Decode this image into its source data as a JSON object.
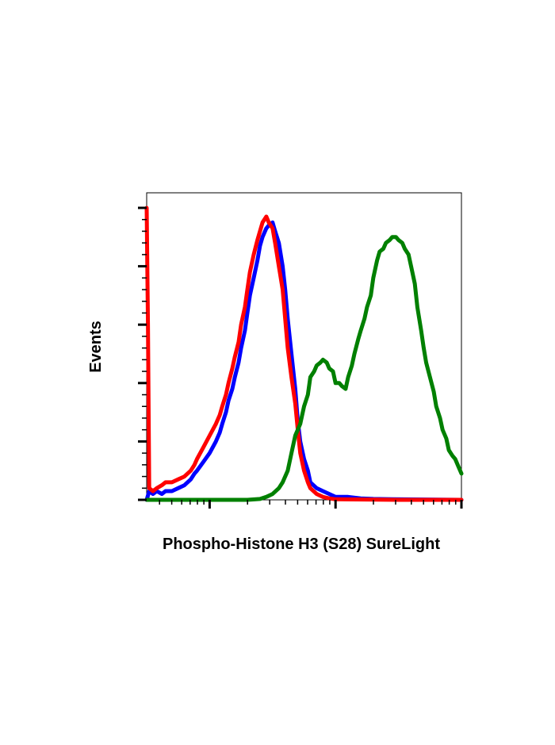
{
  "chart_data": {
    "type": "line",
    "title": "",
    "xlabel": "Phospho-Histone H3 (S28) SureLight",
    "ylabel": "Events",
    "x_scale": "log",
    "xlim": [
      -0.5,
      2.0
    ],
    "ylim": [
      0,
      100
    ],
    "grid": false,
    "legend": "none",
    "tick_labels_shown": false,
    "series": [
      {
        "color": "#0000ff",
        "x": [
          -0.5,
          -0.48,
          -0.45,
          -0.42,
          -0.38,
          -0.35,
          -0.3,
          -0.25,
          -0.2,
          -0.15,
          -0.12,
          -0.1,
          -0.05,
          0.0,
          0.05,
          0.08,
          0.1,
          0.13,
          0.15,
          0.18,
          0.2,
          0.23,
          0.25,
          0.28,
          0.3,
          0.32,
          0.35,
          0.38,
          0.4,
          0.42,
          0.45,
          0.47,
          0.5,
          0.52,
          0.55,
          0.58,
          0.6,
          0.62,
          0.65,
          0.68,
          0.7,
          0.72,
          0.75,
          0.78,
          0.8,
          0.85,
          0.9,
          0.95,
          1.0,
          1.1,
          1.2,
          1.3,
          1.45,
          2.0
        ],
        "y": [
          0,
          3,
          2,
          3,
          2,
          3,
          3,
          4,
          5,
          7,
          9,
          10,
          13,
          16,
          20,
          23,
          26,
          30,
          34,
          38,
          42,
          47,
          52,
          58,
          64,
          70,
          76,
          82,
          87,
          90,
          93,
          94,
          95,
          92,
          88,
          80,
          72,
          62,
          50,
          38,
          27,
          20,
          14,
          10,
          6,
          4,
          3,
          2,
          1,
          1,
          0.5,
          0.3,
          0.2,
          0
        ]
      },
      {
        "color": "#ff0000",
        "x": [
          -0.5,
          -0.49,
          -0.48,
          -0.45,
          -0.42,
          -0.38,
          -0.35,
          -0.3,
          -0.25,
          -0.2,
          -0.15,
          -0.12,
          -0.1,
          -0.05,
          0.0,
          0.05,
          0.08,
          0.1,
          0.13,
          0.15,
          0.18,
          0.2,
          0.23,
          0.25,
          0.28,
          0.3,
          0.32,
          0.35,
          0.38,
          0.4,
          0.42,
          0.45,
          0.47,
          0.5,
          0.52,
          0.55,
          0.58,
          0.6,
          0.62,
          0.65,
          0.68,
          0.7,
          0.72,
          0.75,
          0.78,
          0.8,
          0.85,
          0.9,
          0.95,
          1.0,
          1.5,
          2.0
        ],
        "y": [
          100,
          60,
          4,
          3,
          4,
          5,
          6,
          6,
          7,
          8,
          10,
          12,
          14,
          18,
          22,
          26,
          29,
          32,
          36,
          40,
          45,
          49,
          54,
          60,
          66,
          72,
          78,
          84,
          89,
          92,
          95,
          97,
          95,
          93,
          88,
          80,
          72,
          62,
          52,
          42,
          33,
          24,
          16,
          10,
          6,
          4,
          2,
          1,
          0.5,
          0.2,
          0,
          0
        ]
      },
      {
        "color": "#008000",
        "x": [
          -0.5,
          0.0,
          0.3,
          0.4,
          0.45,
          0.5,
          0.55,
          0.58,
          0.62,
          0.65,
          0.68,
          0.72,
          0.75,
          0.78,
          0.8,
          0.83,
          0.85,
          0.88,
          0.9,
          0.93,
          0.95,
          0.98,
          1.0,
          1.03,
          1.05,
          1.08,
          1.1,
          1.13,
          1.15,
          1.18,
          1.2,
          1.23,
          1.25,
          1.28,
          1.3,
          1.33,
          1.35,
          1.38,
          1.4,
          1.43,
          1.45,
          1.48,
          1.5,
          1.53,
          1.55,
          1.58,
          1.6,
          1.63,
          1.65,
          1.68,
          1.7,
          1.72,
          1.75,
          1.78,
          1.8,
          1.83,
          1.85,
          1.88,
          1.9,
          1.93,
          1.95,
          1.98,
          2.0
        ],
        "y": [
          0,
          0,
          0,
          0.3,
          1,
          2,
          4,
          6,
          10,
          16,
          22,
          26,
          32,
          36,
          42,
          44,
          46,
          47,
          48,
          47,
          45,
          44,
          40,
          40,
          39,
          38,
          42,
          46,
          50,
          55,
          58,
          62,
          66,
          70,
          76,
          82,
          85,
          86,
          88,
          89,
          90,
          90,
          89,
          88,
          86,
          84,
          80,
          74,
          66,
          58,
          52,
          47,
          42,
          37,
          32,
          28,
          24,
          21,
          17,
          15,
          14,
          11,
          9
        ]
      }
    ]
  }
}
